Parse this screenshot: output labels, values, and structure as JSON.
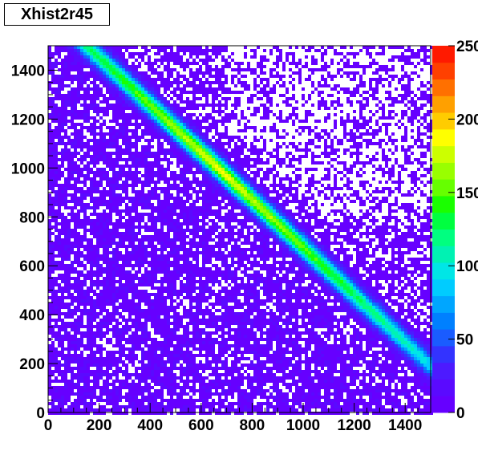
{
  "title": "Xhist2r45",
  "chart_data": {
    "type": "heatmap",
    "title": "Xhist2r45",
    "xlabel": "",
    "ylabel": "",
    "xlim": [
      0,
      1500
    ],
    "ylim": [
      0,
      1500
    ],
    "x_ticks": [
      0,
      200,
      400,
      600,
      800,
      1000,
      1200,
      1400
    ],
    "y_ticks": [
      0,
      200,
      400,
      600,
      800,
      1000,
      1200,
      1400
    ],
    "z_range": [
      0,
      250
    ],
    "z_ticks": [
      0,
      50,
      100,
      150,
      200,
      250
    ],
    "palette": [
      "#6600ff",
      "#5a0aff",
      "#4d1aff",
      "#3333ff",
      "#1a5cff",
      "#0080ff",
      "#00a6ff",
      "#00ccff",
      "#00e6e6",
      "#00f2b3",
      "#00ff80",
      "#00ff40",
      "#1aff00",
      "#66ff00",
      "#99ff00",
      "#ccff00",
      "#ffff00",
      "#ffcc00",
      "#ffa000",
      "#ff7000",
      "#ff4000",
      "#ff1a00"
    ],
    "band": {
      "description_free": true,
      "line_x_at_y1500": 150,
      "line_x_at_y200": 1490,
      "peak_value": 175
    }
  }
}
